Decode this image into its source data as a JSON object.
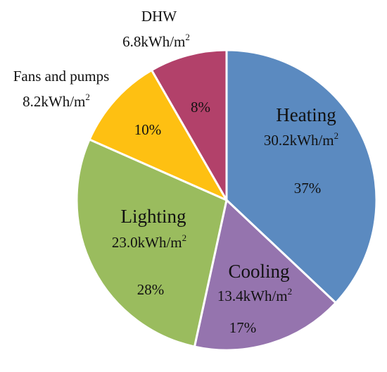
{
  "chart_data": {
    "type": "pie",
    "slices": [
      {
        "name": "Heating",
        "value": 30.2,
        "value_text": "30.2kWh/m",
        "percent": "37%",
        "color": "#5b8ac0"
      },
      {
        "name": "Cooling",
        "value": 13.4,
        "value_text": "13.4kWh/m",
        "percent": "17%",
        "color": "#9574ae"
      },
      {
        "name": "Lighting",
        "value": 23.0,
        "value_text": "23.0kWh/m",
        "percent": "28%",
        "color": "#9abc5e"
      },
      {
        "name": "Fans and pumps",
        "value": 8.2,
        "value_text": "8.2kWh/m",
        "percent": "10%",
        "color": "#fec012"
      },
      {
        "name": "DHW",
        "value": 6.8,
        "value_text": "6.8kWh/m",
        "percent": "8%",
        "color": "#b2416a"
      }
    ],
    "unit_superscript": "2",
    "start_angle_deg": 0,
    "direction": "clockwise"
  }
}
